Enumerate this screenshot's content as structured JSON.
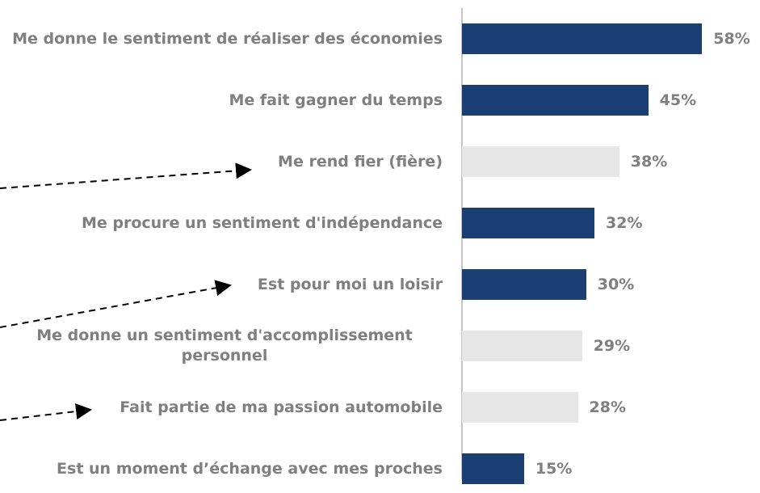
{
  "chart_data": {
    "type": "bar",
    "orientation": "horizontal",
    "categories": [
      "Me donne le sentiment de réaliser des économies",
      "Me fait gagner du temps",
      "Me rend fier (fière)",
      "Me procure un sentiment d'indépendance",
      "Est pour moi un loisir",
      "Me donne un sentiment d'accomplissement personnel",
      "Fait partie de ma passion automobile",
      "Est un moment d’échange avec mes proches"
    ],
    "values": [
      58,
      45,
      38,
      32,
      30,
      29,
      28,
      15
    ],
    "value_labels": [
      "58%",
      "45%",
      "38%",
      "32%",
      "30%",
      "29%",
      "28%",
      "15%"
    ],
    "colors": [
      "#1b3f72",
      "#1b3f72",
      "#e6e6e6",
      "#1b3f72",
      "#1b3f72",
      "#e6e6e6",
      "#e6e6e6",
      "#1b3f72"
    ],
    "xlim": [
      0,
      72
    ]
  }
}
